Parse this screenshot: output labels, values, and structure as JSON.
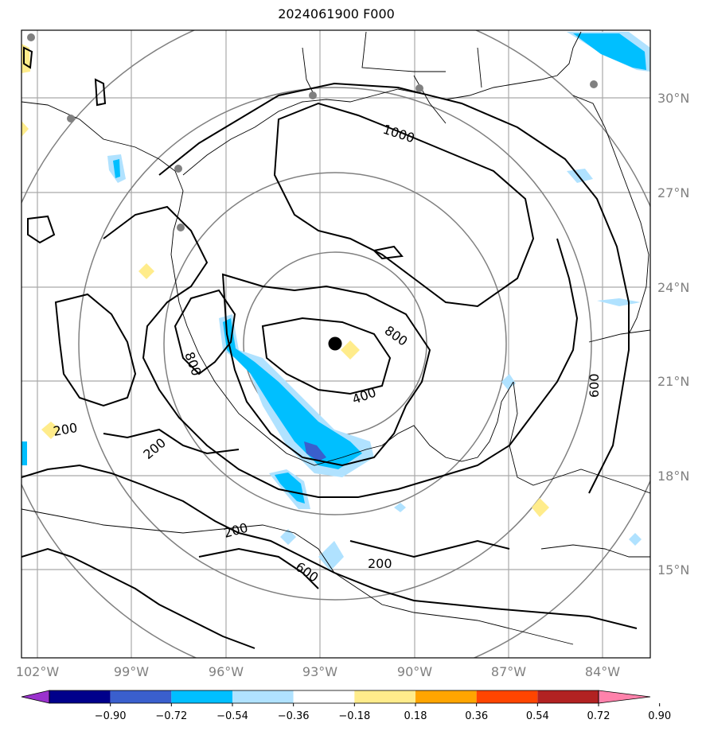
{
  "title": "2024061900 F000",
  "lat_labels": [
    "30°N",
    "27°N",
    "24°N",
    "21°N",
    "18°N",
    "15°N"
  ],
  "lon_labels": [
    "102°W",
    "99°W",
    "96°W",
    "93°W",
    "90°W",
    "87°W",
    "84°W"
  ],
  "colorbar": {
    "ticks": [
      "−0.90",
      "−0.72",
      "−0.54",
      "−0.36",
      "−0.18",
      "0.18",
      "0.36",
      "0.54",
      "0.72",
      "0.90"
    ],
    "colors": [
      "#9a32cd",
      "#00008b",
      "#3a5fcd",
      "#00bfff",
      "#b0e2ff",
      "#ffffff",
      "#ffec8b",
      "#ffa500",
      "#ff4500",
      "#b22222",
      "#ff82ab"
    ]
  },
  "contour_labels": [
    {
      "text": "1000"
    },
    {
      "text": "800"
    },
    {
      "text": "800"
    },
    {
      "text": "400"
    },
    {
      "text": "600"
    },
    {
      "text": "200"
    },
    {
      "text": "200"
    },
    {
      "text": "200"
    },
    {
      "text": "600"
    },
    {
      "text": "200"
    }
  ],
  "storm_center": {
    "lat": 22.2,
    "lon": -92.3
  }
}
